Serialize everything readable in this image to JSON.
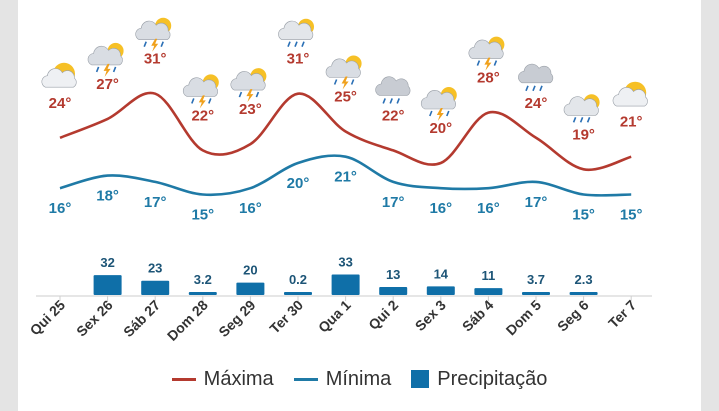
{
  "chart_data": {
    "type": "line",
    "categories": [
      "Qui 25",
      "Sex 26",
      "Sáb 27",
      "Dom 28",
      "Seg 29",
      "Ter 30",
      "Qua 1",
      "Qui 2",
      "Sex 3",
      "Sáb 4",
      "Dom 5",
      "Seg 6",
      "Ter 7"
    ],
    "series": [
      {
        "name": "Máxima",
        "type": "line",
        "color": "#b43a2f",
        "values": [
          24,
          27,
          31,
          22,
          23,
          31,
          25,
          22,
          20,
          28,
          24,
          19,
          21
        ],
        "labels": [
          "24°",
          "27°",
          "31°",
          "22°",
          "23°",
          "31°",
          "25°",
          "22°",
          "20°",
          "28°",
          "24°",
          "19°",
          "21°"
        ]
      },
      {
        "name": "Mínima",
        "type": "line",
        "color": "#1f7aa6",
        "values": [
          16,
          18,
          17,
          15,
          16,
          20,
          21,
          17,
          16,
          16,
          17,
          15,
          15
        ],
        "labels": [
          "16°",
          "18°",
          "17°",
          "15°",
          "16°",
          "20°",
          "21°",
          "17°",
          "16°",
          "16°",
          "17°",
          "15°",
          "15°"
        ]
      },
      {
        "name": "Precipitação",
        "type": "bar",
        "color": "#0f6fa8",
        "values": [
          0,
          32,
          23,
          3.2,
          20,
          0.2,
          33,
          13,
          14,
          11,
          3.7,
          2.3,
          0
        ],
        "labels": [
          "",
          "32",
          "23",
          "3.2",
          "20",
          "0.2",
          "33",
          "13",
          "14",
          "11",
          "3.7",
          "2.3",
          ""
        ]
      }
    ],
    "icons": [
      "sun-cloud-icon",
      "thunderstorm-icon",
      "thunderstorm-icon",
      "thunderstorm-icon",
      "thunderstorm-icon",
      "partly-cloudy-rain-icon",
      "thunderstorm-icon",
      "cloud-rain-icon",
      "thunderstorm-icon",
      "thunderstorm-icon",
      "cloud-rain-icon",
      "partly-cloudy-rain-icon",
      "sun-cloud-icon"
    ],
    "legend_position": "bottom",
    "grid": false
  }
}
